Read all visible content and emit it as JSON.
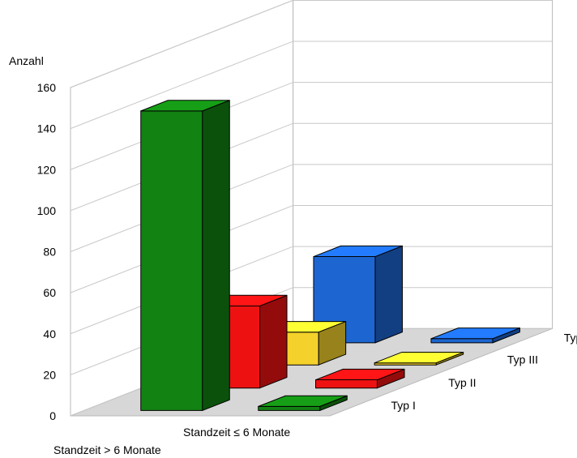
{
  "chart_data": {
    "type": "bar",
    "subtype": "3d-grouped-depth",
    "ylabel": "Anzahl",
    "ylim": [
      0,
      160
    ],
    "yticks": [
      0,
      20,
      40,
      60,
      80,
      100,
      120,
      140,
      160
    ],
    "grid": true,
    "categories": [
      "Typ I",
      "Typ II",
      "Typ III",
      "Typ IV"
    ],
    "series": [
      {
        "name": "Standzeit > 6 Monate",
        "values": [
          146,
          40,
          16,
          42
        ]
      },
      {
        "name": "Standzeit ≤ 6 Monate",
        "values": [
          2,
          4,
          1,
          2
        ]
      }
    ],
    "colors": {
      "Typ I": "#128212",
      "Typ II": "#ee1111",
      "Typ III": "#f4d12b",
      "Typ IV": "#1d66d1"
    }
  }
}
